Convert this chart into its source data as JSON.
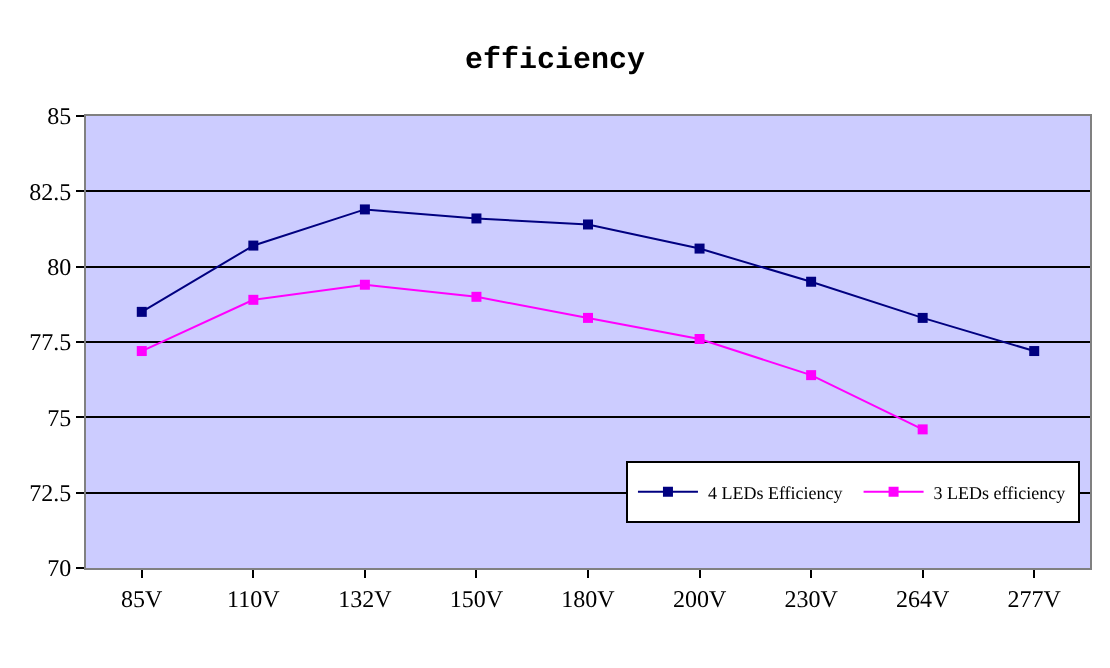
{
  "chart_data": {
    "type": "line",
    "title": "efficiency",
    "categories": [
      "85V",
      "110V",
      "132V",
      "150V",
      "180V",
      "200V",
      "230V",
      "264V",
      "277V"
    ],
    "series": [
      {
        "name": "4 LEDs Efficiency",
        "color": "#000080",
        "values": [
          78.5,
          80.7,
          81.9,
          81.6,
          81.4,
          80.6,
          79.5,
          78.3,
          77.2
        ]
      },
      {
        "name": "3 LEDs efficiency",
        "color": "#ff00ff",
        "values": [
          77.2,
          78.9,
          79.4,
          79.0,
          78.3,
          77.6,
          76.4,
          74.6,
          null
        ]
      }
    ],
    "ylim": [
      70,
      85
    ],
    "yticks": [
      70,
      72.5,
      75,
      77.5,
      80,
      82.5,
      85
    ],
    "grid": "y",
    "legend": "bottom right",
    "marker": "square",
    "line_style": "solid"
  }
}
